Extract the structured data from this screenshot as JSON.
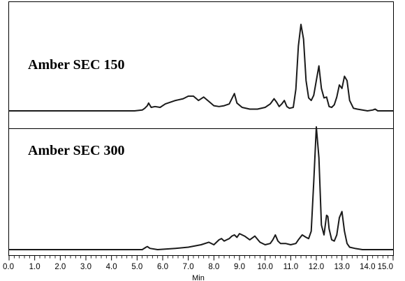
{
  "chart_data": {
    "type": "line",
    "xlabel": "Min",
    "xlim": [
      0,
      15
    ],
    "x_ticks": [
      "0.0",
      "1.0",
      "2.0",
      "3.0",
      "4.0",
      "5.0",
      "6.0",
      "7.0",
      "8.0",
      "9.0",
      "10.0",
      "11.0",
      "12.0",
      "13.0",
      "14.0",
      "15.0"
    ],
    "y_axis_visible": false,
    "grid": false,
    "panels": [
      {
        "label": "Amber SEC 150",
        "series": [
          {
            "x": [
              0,
              4.9,
              5.2,
              5.3,
              5.4,
              5.45,
              5.55,
              5.7,
              5.9,
              6.1,
              6.3,
              6.5,
              6.8,
              7.0,
              7.2,
              7.4,
              7.6,
              7.8,
              8.0,
              8.2,
              8.4,
              8.6,
              8.7,
              8.8,
              8.9,
              9.1,
              9.4,
              9.7,
              10.0,
              10.2,
              10.35,
              10.45,
              10.55,
              10.65,
              10.75,
              10.85,
              10.95,
              11.1,
              11.2,
              11.3,
              11.4,
              11.5,
              11.6,
              11.7,
              11.8,
              11.9,
              12.0,
              12.1,
              12.2,
              12.3,
              12.4,
              12.5,
              12.6,
              12.7,
              12.8,
              12.9,
              13.0,
              13.1,
              13.2,
              13.3,
              13.45,
              13.6,
              14.0,
              14.2,
              14.3,
              14.4,
              15.0
            ],
            "y": [
              0,
              0,
              0.01,
              0.03,
              0.06,
              0.09,
              0.04,
              0.05,
              0.04,
              0.08,
              0.1,
              0.12,
              0.14,
              0.17,
              0.17,
              0.12,
              0.16,
              0.11,
              0.06,
              0.05,
              0.06,
              0.08,
              0.14,
              0.2,
              0.09,
              0.04,
              0.02,
              0.02,
              0.04,
              0.08,
              0.14,
              0.1,
              0.05,
              0.08,
              0.12,
              0.05,
              0.03,
              0.04,
              0.25,
              0.75,
              1.0,
              0.83,
              0.35,
              0.15,
              0.12,
              0.18,
              0.35,
              0.52,
              0.26,
              0.15,
              0.16,
              0.05,
              0.04,
              0.07,
              0.16,
              0.3,
              0.26,
              0.4,
              0.35,
              0.12,
              0.03,
              0.02,
              0.0,
              0.01,
              0.02,
              0.0,
              0.0
            ]
          }
        ]
      },
      {
        "label": "Amber SEC 300",
        "series": [
          {
            "x": [
              0,
              5.2,
              5.35,
              5.4,
              5.5,
              5.8,
              6.5,
              7.0,
              7.5,
              7.8,
              8.0,
              8.2,
              8.3,
              8.4,
              8.5,
              8.6,
              8.7,
              8.8,
              8.9,
              9.0,
              9.1,
              9.2,
              9.4,
              9.6,
              9.8,
              10.0,
              10.2,
              10.3,
              10.4,
              10.5,
              10.6,
              10.8,
              11.0,
              11.2,
              11.3,
              11.45,
              11.6,
              11.7,
              11.8,
              11.9,
              12.0,
              12.1,
              12.2,
              12.3,
              12.4,
              12.45,
              12.5,
              12.6,
              12.7,
              12.8,
              12.9,
              13.0,
              13.1,
              13.2,
              13.3,
              13.5,
              13.8,
              14.5,
              15.0
            ],
            "y": [
              0,
              0,
              0.02,
              0.025,
              0.01,
              0.0,
              0.01,
              0.02,
              0.04,
              0.06,
              0.04,
              0.08,
              0.09,
              0.07,
              0.08,
              0.09,
              0.11,
              0.12,
              0.1,
              0.13,
              0.12,
              0.11,
              0.08,
              0.11,
              0.06,
              0.04,
              0.05,
              0.08,
              0.12,
              0.07,
              0.05,
              0.05,
              0.04,
              0.05,
              0.08,
              0.12,
              0.1,
              0.09,
              0.15,
              0.55,
              1.0,
              0.75,
              0.2,
              0.12,
              0.28,
              0.27,
              0.17,
              0.08,
              0.07,
              0.12,
              0.26,
              0.31,
              0.15,
              0.05,
              0.02,
              0.01,
              0.0,
              0.0,
              0.0
            ]
          }
        ]
      }
    ]
  }
}
